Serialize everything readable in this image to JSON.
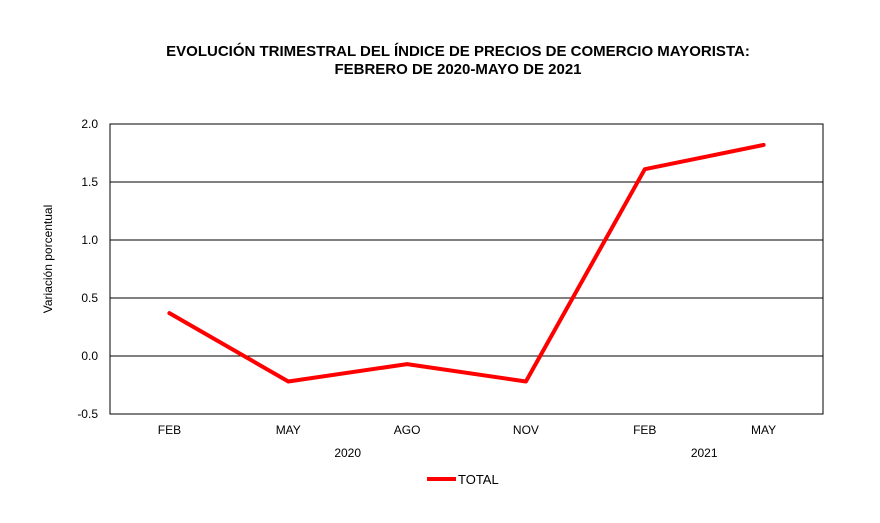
{
  "chart_data": {
    "type": "line",
    "title": "EVOLUCIÓN TRIMESTRAL DEL ÍNDICE DE PRECIOS DE COMERCIO MAYORISTA:",
    "subtitle": "FEBRERO DE 2020-MAYO DE 2021",
    "ylabel": "Variación porcentual",
    "categories": [
      "FEB",
      "MAY",
      "AGO",
      "NOV",
      "FEB",
      "MAY"
    ],
    "year_groups": [
      {
        "label": "2020",
        "start": 0,
        "end": 3
      },
      {
        "label": "2021",
        "start": 4,
        "end": 5
      }
    ],
    "series": [
      {
        "name": "TOTAL",
        "color": "#ff0000",
        "values": [
          0.37,
          -0.22,
          -0.07,
          -0.22,
          1.61,
          1.82
        ]
      }
    ],
    "ylim": [
      -0.5,
      2.0
    ],
    "yticks": [
      "2.0",
      "1.5",
      "1.0",
      "0.5",
      "0.0",
      "-0.5"
    ],
    "grid": true,
    "legend_position": "bottom"
  }
}
